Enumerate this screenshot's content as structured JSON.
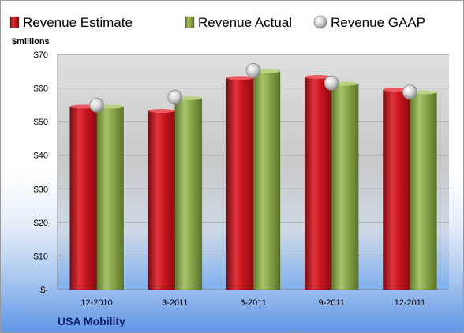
{
  "chart_data": {
    "type": "bar",
    "title": "",
    "footer_label": "USA Mobility",
    "ylabel": "$millions",
    "ylim": [
      0,
      70
    ],
    "yticks": [
      0,
      10,
      20,
      30,
      40,
      50,
      60,
      70
    ],
    "ytick_labels": [
      "$-",
      "$10",
      "$20",
      "$30",
      "$40",
      "$50",
      "$60",
      "$70"
    ],
    "categories": [
      "12-2010",
      "3-2011",
      "6-2011",
      "9-2011",
      "12-2011"
    ],
    "series": [
      {
        "name": "Revenue Estimate",
        "kind": "bar",
        "color": "#c0101a",
        "values": [
          54.5,
          53.2,
          63.0,
          63.3,
          59.5
        ]
      },
      {
        "name": "Revenue Actual",
        "kind": "bar",
        "color": "#8aa64a",
        "values": [
          54.5,
          57.0,
          65.0,
          61.3,
          58.7
        ]
      },
      {
        "name": "Revenue GAAP",
        "kind": "marker",
        "color": "#c8c8c8",
        "values": [
          54.9,
          57.3,
          65.2,
          61.5,
          58.8
        ]
      }
    ],
    "grid": true,
    "legend_position": "top"
  }
}
